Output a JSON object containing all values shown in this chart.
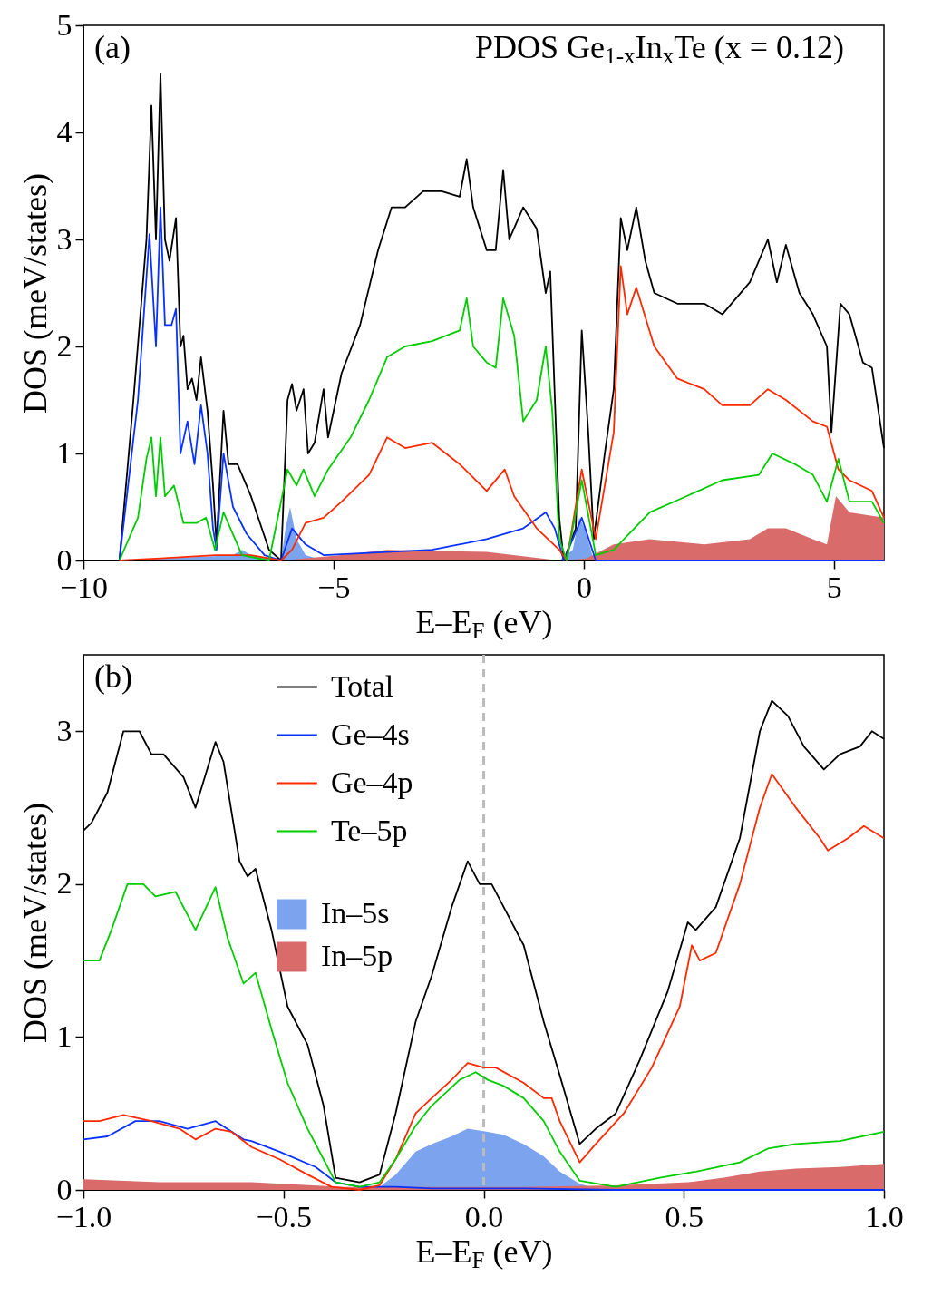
{
  "chart_data": [
    {
      "type": "line",
      "annotations": [
        "(a)",
        "PDOS Ge$_{1-x}$In$_{x}$Te (x = 0.12)"
      ],
      "xlabel": "E–E$_{F}$ (eV)",
      "ylabel": "DOS (meV/states)",
      "xlim": [
        -10,
        6
      ],
      "xticks": [
        {
          "value": -10,
          "label": "−10"
        },
        {
          "value": -5,
          "label": "−5"
        },
        0,
        5
      ],
      "ylim": [
        0,
        5
      ],
      "yticks": [
        0,
        1,
        2,
        3,
        4,
        5
      ],
      "legend": false,
      "series": [
        {
          "color": "#000000",
          "x": [
            -9.28,
            -9.0,
            -8.74,
            -8.64,
            -8.55,
            -8.46,
            -8.37,
            -8.28,
            -8.15,
            -8.06,
            -8.0,
            -7.92,
            -7.83,
            -7.74,
            -7.65,
            -7.52,
            -7.41,
            -7.34,
            -7.2,
            -7.1,
            -6.92,
            -6.65,
            -6.29,
            -6.05,
            -5.92,
            -5.83,
            -5.74,
            -5.6,
            -5.51,
            -5.38,
            -5.2,
            -5.11,
            -4.84,
            -4.47,
            -4.11,
            -3.84,
            -3.57,
            -3.21,
            -2.84,
            -2.48,
            -2.34,
            -2.21,
            -1.94,
            -1.76,
            -1.61,
            -1.49,
            -1.21,
            -0.94,
            -0.76,
            -0.67,
            -0.49,
            -0.4,
            -0.16,
            -0.04,
            0.09,
            0.2,
            0.42,
            0.6,
            0.74,
            0.87,
            1.05,
            1.23,
            1.41,
            1.87,
            2.41,
            2.77,
            3.32,
            3.68,
            3.86,
            4.04,
            4.31,
            4.58,
            4.86,
            4.95,
            5.13,
            5.31,
            5.58,
            5.76,
            6.0
          ],
          "values": [
            0,
            1.5,
            3.0,
            4.25,
            3.0,
            4.55,
            3.0,
            2.8,
            3.2,
            2.0,
            2.1,
            1.6,
            1.7,
            1.5,
            1.9,
            1.4,
            0.7,
            0.15,
            1.4,
            0.9,
            0.9,
            0.6,
            0.1,
            0,
            1.5,
            1.65,
            1.4,
            1.6,
            1.0,
            1.1,
            1.6,
            1.15,
            1.75,
            2.2,
            2.9,
            3.3,
            3.3,
            3.45,
            3.45,
            3.4,
            3.75,
            3.3,
            2.9,
            2.9,
            3.65,
            3.0,
            3.3,
            3.1,
            2.5,
            2.7,
            0.4,
            0,
            0.3,
            2.15,
            1.2,
            0.2,
            1.0,
            1.6,
            3.2,
            2.9,
            3.3,
            2.8,
            2.5,
            2.4,
            2.4,
            2.3,
            2.6,
            3.0,
            2.6,
            2.95,
            2.5,
            2.3,
            2.0,
            1.2,
            2.4,
            2.3,
            1.85,
            1.8,
            1.05
          ]
        },
        {
          "color": "#0a32ff",
          "x": [
            -9.28,
            -8.91,
            -8.68,
            -8.55,
            -8.46,
            -8.37,
            -8.24,
            -8.15,
            -8.06,
            -7.92,
            -7.78,
            -7.65,
            -7.52,
            -7.41,
            -7.34,
            -7.2,
            -7.01,
            -6.74,
            -6.38,
            -6.05,
            -5.83,
            -5.56,
            -5.2,
            -3.03,
            -1.94,
            -1.21,
            -0.76,
            -0.58,
            -0.4,
            -0.04,
            0.24,
            6.0
          ],
          "values": [
            0,
            1.5,
            3.05,
            2.0,
            3.3,
            2.2,
            2.2,
            2.35,
            1.0,
            1.3,
            0.9,
            1.45,
            1.0,
            0.3,
            0.1,
            1.0,
            0.5,
            0.25,
            0.05,
            0,
            0.3,
            0.15,
            0.05,
            0.1,
            0.2,
            0.3,
            0.45,
            0.3,
            0,
            0.4,
            0,
            0
          ]
        },
        {
          "color": "#ff2a00",
          "x": [
            -9.28,
            -8.46,
            -7.37,
            -6.65,
            -6.05,
            -5.83,
            -5.56,
            -5.2,
            -4.84,
            -4.29,
            -3.93,
            -3.57,
            -3.03,
            -2.48,
            -1.94,
            -1.58,
            -1.39,
            -0.94,
            -0.49,
            -0.34,
            -0.04,
            0.24,
            0.6,
            0.74,
            0.87,
            1.05,
            1.41,
            1.87,
            2.41,
            2.77,
            3.32,
            3.68,
            4.04,
            4.58,
            4.86,
            5.09,
            5.31,
            5.76,
            6.0
          ],
          "values": [
            0,
            0.02,
            0.05,
            0.05,
            0,
            0.1,
            0.35,
            0.4,
            0.55,
            0.8,
            1.15,
            1.05,
            1.1,
            0.9,
            0.65,
            0.85,
            0.6,
            0.3,
            0.1,
            0,
            0.85,
            0.2,
            1.2,
            2.75,
            2.3,
            2.55,
            2.0,
            1.7,
            1.6,
            1.45,
            1.45,
            1.6,
            1.5,
            1.3,
            1.25,
            0.85,
            0.75,
            0.65,
            0.4
          ]
        },
        {
          "color": "#00cc00",
          "x": [
            -9.28,
            -8.91,
            -8.74,
            -8.64,
            -8.55,
            -8.46,
            -8.37,
            -8.19,
            -8.0,
            -7.74,
            -7.55,
            -7.37,
            -7.2,
            -6.83,
            -6.29,
            -5.92,
            -5.74,
            -5.6,
            -5.38,
            -5.11,
            -4.66,
            -4.29,
            -3.93,
            -3.57,
            -3.03,
            -2.48,
            -2.34,
            -2.21,
            -1.94,
            -1.76,
            -1.61,
            -1.39,
            -1.21,
            -0.94,
            -0.76,
            -0.63,
            -0.49,
            -0.34,
            -0.04,
            0.24,
            0.6,
            1.32,
            2.05,
            2.77,
            3.5,
            3.77,
            4.22,
            4.58,
            4.86,
            5.09,
            5.31,
            5.76,
            6.0
          ],
          "values": [
            0,
            0.4,
            0.95,
            1.15,
            0.6,
            1.15,
            0.6,
            0.7,
            0.35,
            0.35,
            0.4,
            0.1,
            0.45,
            0.05,
            0,
            0.85,
            0.7,
            0.85,
            0.6,
            0.85,
            1.15,
            1.5,
            1.9,
            2.0,
            2.05,
            2.15,
            2.45,
            2.0,
            1.85,
            1.8,
            2.45,
            2.1,
            1.3,
            1.5,
            2.0,
            1.4,
            0.2,
            0,
            0.75,
            0.05,
            0.1,
            0.45,
            0.6,
            0.75,
            0.8,
            1.0,
            0.9,
            0.8,
            0.55,
            0.95,
            0.55,
            0.55,
            0.35
          ]
        },
        {
          "type": "area",
          "color": "#7ba3ee",
          "x": [
            -9.28,
            -7.01,
            -6.83,
            -6.65,
            -6.05,
            -5.96,
            -5.87,
            -5.74,
            -5.56,
            -5.2,
            -0.49,
            -0.22,
            -0.09,
            0.02,
            0.2,
            6.0
          ],
          "values": [
            0,
            0.05,
            0.1,
            0.05,
            0,
            0.3,
            0.5,
            0.2,
            0.05,
            0,
            0,
            0.1,
            0.4,
            0.3,
            0,
            0
          ]
        },
        {
          "type": "area",
          "color": "#d96b6b",
          "x": [
            -9.28,
            -6.05,
            -4.84,
            -3.93,
            -1.94,
            -0.49,
            0.05,
            0.6,
            1.32,
            2.41,
            3.32,
            3.68,
            4.04,
            4.58,
            4.86,
            5.04,
            5.13,
            5.31,
            6.0
          ],
          "values": [
            0,
            0,
            0.05,
            0.1,
            0.08,
            0,
            0.02,
            0.15,
            0.2,
            0.15,
            0.2,
            0.3,
            0.3,
            0.2,
            0.15,
            0.6,
            0.55,
            0.45,
            0.4
          ]
        }
      ]
    },
    {
      "type": "line",
      "annotations": [
        "(b)"
      ],
      "xlabel": "E–E$_{F}$ (eV)",
      "ylabel": "DOS (meV/states)",
      "xlim": [
        -1,
        1
      ],
      "xticks": [
        {
          "value": -1,
          "label": "−1.0"
        },
        {
          "value": -0.5,
          "label": "−0.5"
        },
        {
          "value": 0,
          "label": "0.0"
        },
        {
          "value": 0.5,
          "label": "0.5"
        },
        {
          "value": 1,
          "label": "1.0"
        }
      ],
      "ylim": [
        0,
        3.5
      ],
      "yticks": [
        0,
        1,
        2,
        3
      ],
      "legend": "top left",
      "ref_lines": [
        {
          "axis": "x",
          "value": 0,
          "color": "#bbbbbb",
          "line_style": "dashed"
        }
      ],
      "series": [
        {
          "name": "Total",
          "color": "#000000",
          "x": [
            -1.0,
            -0.98,
            -0.94,
            -0.9,
            -0.86,
            -0.83,
            -0.8,
            -0.75,
            -0.72,
            -0.67,
            -0.65,
            -0.61,
            -0.59,
            -0.57,
            -0.53,
            -0.49,
            -0.44,
            -0.4,
            -0.37,
            -0.31,
            -0.26,
            -0.22,
            -0.17,
            -0.13,
            -0.08,
            -0.04,
            -0.01,
            0.02,
            0.05,
            0.1,
            0.15,
            0.19,
            0.24,
            0.28,
            0.33,
            0.39,
            0.46,
            0.51,
            0.53,
            0.58,
            0.64,
            0.69,
            0.72,
            0.76,
            0.8,
            0.85,
            0.89,
            0.94,
            0.97,
            1.0
          ],
          "values": [
            2.35,
            2.4,
            2.6,
            3.0,
            3.0,
            2.85,
            2.85,
            2.7,
            2.5,
            2.93,
            2.8,
            2.15,
            2.05,
            2.1,
            1.7,
            1.2,
            0.95,
            0.55,
            0.08,
            0.05,
            0.1,
            0.5,
            1.1,
            1.4,
            1.85,
            2.15,
            2.0,
            2.0,
            1.85,
            1.6,
            1.1,
            0.75,
            0.3,
            0.4,
            0.5,
            0.85,
            1.3,
            1.75,
            1.7,
            1.85,
            2.3,
            3.0,
            3.2,
            3.1,
            2.9,
            2.75,
            2.85,
            2.9,
            3.0,
            2.95
          ]
        },
        {
          "name": "Ge–4s",
          "color": "#0a32ff",
          "x": [
            -1.0,
            -0.94,
            -0.87,
            -0.81,
            -0.74,
            -0.67,
            -0.6,
            -0.58,
            -0.51,
            -0.42,
            -0.37,
            -0.31,
            -0.22,
            -0.13,
            0.1,
            0.33,
            1.0
          ],
          "values": [
            0.33,
            0.35,
            0.45,
            0.45,
            0.4,
            0.45,
            0.33,
            0.32,
            0.25,
            0.15,
            0.05,
            0.02,
            0.02,
            0.01,
            0.01,
            0,
            0
          ]
        },
        {
          "name": "Ge–4p",
          "color": "#ff2a00",
          "x": [
            -1.0,
            -0.96,
            -0.9,
            -0.83,
            -0.76,
            -0.72,
            -0.67,
            -0.63,
            -0.58,
            -0.51,
            -0.44,
            -0.38,
            -0.31,
            -0.26,
            -0.22,
            -0.17,
            -0.13,
            -0.08,
            -0.04,
            0.0,
            0.03,
            0.1,
            0.15,
            0.17,
            0.19,
            0.24,
            0.28,
            0.35,
            0.42,
            0.49,
            0.52,
            0.54,
            0.58,
            0.64,
            0.69,
            0.72,
            0.78,
            0.84,
            0.86,
            0.91,
            0.95,
            1.0
          ],
          "values": [
            0.45,
            0.45,
            0.49,
            0.45,
            0.4,
            0.33,
            0.4,
            0.38,
            0.28,
            0.2,
            0.1,
            0.02,
            0.0,
            0.03,
            0.2,
            0.5,
            0.6,
            0.72,
            0.83,
            0.8,
            0.8,
            0.7,
            0.6,
            0.6,
            0.45,
            0.18,
            0.3,
            0.5,
            0.8,
            1.2,
            1.6,
            1.5,
            1.55,
            2.0,
            2.5,
            2.72,
            2.5,
            2.3,
            2.22,
            2.3,
            2.38,
            2.3
          ]
        },
        {
          "name": "Te–5p",
          "color": "#00cc00",
          "x": [
            -1.0,
            -0.96,
            -0.93,
            -0.89,
            -0.85,
            -0.82,
            -0.77,
            -0.72,
            -0.67,
            -0.64,
            -0.6,
            -0.57,
            -0.53,
            -0.49,
            -0.44,
            -0.4,
            -0.37,
            -0.31,
            -0.26,
            -0.22,
            -0.17,
            -0.13,
            -0.06,
            -0.02,
            0.01,
            0.05,
            0.1,
            0.15,
            0.19,
            0.24,
            0.33,
            0.44,
            0.53,
            0.64,
            0.71,
            0.78,
            0.89,
            1.0
          ],
          "values": [
            1.5,
            1.5,
            1.7,
            2.0,
            2.0,
            1.92,
            1.95,
            1.7,
            1.98,
            1.65,
            1.35,
            1.42,
            1.05,
            0.7,
            0.4,
            0.2,
            0.05,
            0.02,
            0.05,
            0.2,
            0.42,
            0.55,
            0.72,
            0.77,
            0.72,
            0.68,
            0.6,
            0.45,
            0.25,
            0.06,
            0.02,
            0.08,
            0.12,
            0.18,
            0.27,
            0.3,
            0.32,
            0.38
          ]
        },
        {
          "type": "area",
          "name": "In–5s",
          "color": "#7ba3ee",
          "x": [
            -1.0,
            -0.26,
            -0.22,
            -0.17,
            -0.13,
            -0.08,
            -0.04,
            0.01,
            0.05,
            0.1,
            0.15,
            0.19,
            0.24,
            0.28,
            0.33,
            1.0
          ],
          "values": [
            0,
            0.02,
            0.1,
            0.25,
            0.3,
            0.35,
            0.4,
            0.38,
            0.36,
            0.3,
            0.22,
            0.12,
            0.04,
            0.01,
            0,
            0
          ]
        },
        {
          "type": "area",
          "name": "In–5p",
          "color": "#d96b6b",
          "x": [
            -1.0,
            -0.81,
            -0.58,
            -0.35,
            -0.13,
            0.1,
            0.33,
            0.51,
            0.6,
            0.69,
            0.78,
            0.89,
            1.0
          ],
          "values": [
            0.07,
            0.05,
            0.05,
            0.02,
            0.02,
            0.02,
            0.03,
            0.05,
            0.08,
            0.12,
            0.14,
            0.15,
            0.17
          ]
        }
      ]
    }
  ]
}
